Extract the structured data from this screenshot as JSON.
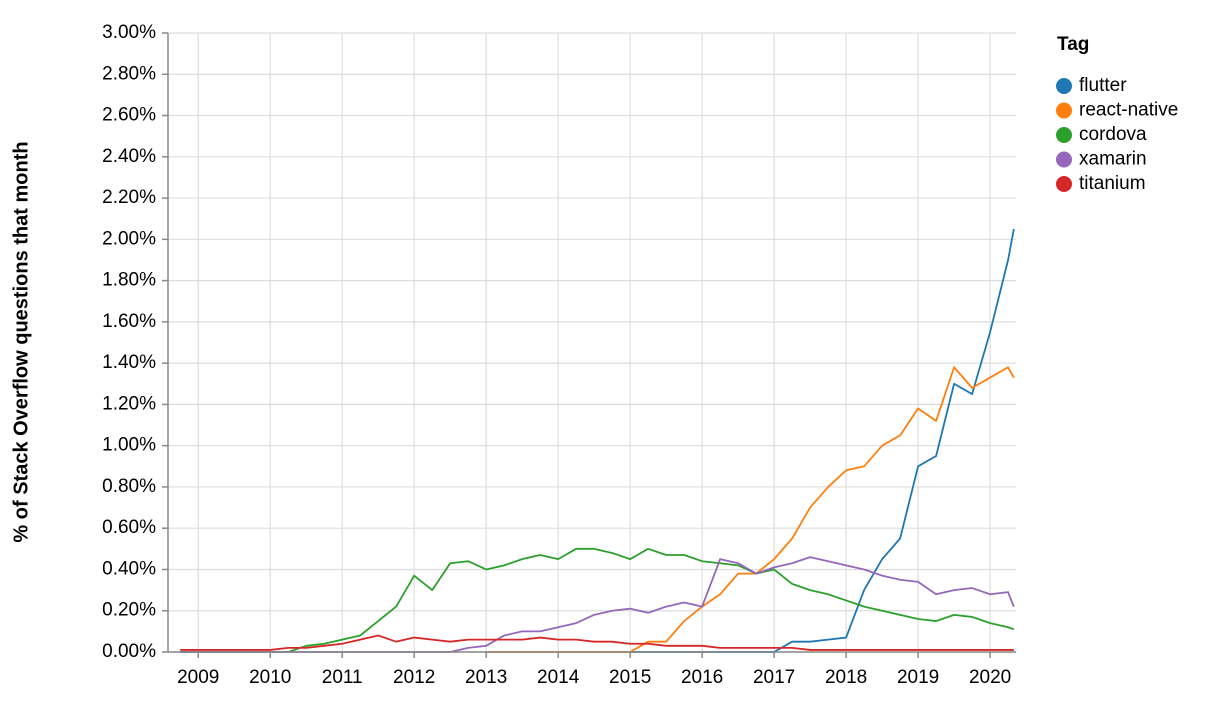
{
  "chart_data": {
    "type": "line",
    "y_label": "% of Stack Overflow questions that month",
    "legend_title": "Tag",
    "legend_position": "right",
    "grid": true,
    "xlim": [
      2008.58,
      2020.36
    ],
    "xticks": [
      2009,
      2010,
      2011,
      2012,
      2013,
      2014,
      2015,
      2016,
      2017,
      2018,
      2019,
      2020
    ],
    "ylim": [
      0,
      3
    ],
    "yticks": [
      {
        "value": 0,
        "label": "0.00%"
      },
      {
        "value": 0.2,
        "label": "0.20%"
      },
      {
        "value": 0.4,
        "label": "0.40%"
      },
      {
        "value": 0.6,
        "label": "0.60%"
      },
      {
        "value": 0.8,
        "label": "0.80%"
      },
      {
        "value": 1.0,
        "label": "1.00%"
      },
      {
        "value": 1.2,
        "label": "1.20%"
      },
      {
        "value": 1.4,
        "label": "1.40%"
      },
      {
        "value": 1.6,
        "label": "1.60%"
      },
      {
        "value": 1.8,
        "label": "1.80%"
      },
      {
        "value": 2.0,
        "label": "2.00%"
      },
      {
        "value": 2.2,
        "label": "2.20%"
      },
      {
        "value": 2.4,
        "label": "2.40%"
      },
      {
        "value": 2.6,
        "label": "2.60%"
      },
      {
        "value": 2.8,
        "label": "2.80%"
      },
      {
        "value": 3.0,
        "label": "3.00%"
      }
    ],
    "x": [
      2008.75,
      2009.0,
      2009.25,
      2009.5,
      2009.75,
      2010.0,
      2010.25,
      2010.5,
      2010.75,
      2011.0,
      2011.25,
      2011.5,
      2011.75,
      2012.0,
      2012.25,
      2012.5,
      2012.75,
      2013.0,
      2013.25,
      2013.5,
      2013.75,
      2014.0,
      2014.25,
      2014.5,
      2014.75,
      2015.0,
      2015.25,
      2015.5,
      2015.75,
      2016.0,
      2016.25,
      2016.5,
      2016.75,
      2017.0,
      2017.25,
      2017.5,
      2017.75,
      2018.0,
      2018.25,
      2018.5,
      2018.75,
      2019.0,
      2019.25,
      2019.5,
      2019.75,
      2020.0,
      2020.25,
      2020.33
    ],
    "series": [
      {
        "name": "flutter",
        "color": "#1f77b4",
        "values": [
          null,
          null,
          null,
          null,
          null,
          null,
          null,
          null,
          null,
          null,
          null,
          null,
          null,
          null,
          null,
          null,
          null,
          null,
          null,
          null,
          null,
          null,
          null,
          null,
          null,
          0,
          0,
          0,
          0,
          0,
          0,
          0,
          0,
          0,
          0.05,
          0.05,
          0.06,
          0.07,
          0.3,
          0.45,
          0.55,
          0.9,
          0.95,
          1.3,
          1.25,
          1.55,
          1.9,
          2.05
        ]
      },
      {
        "name": "react-native",
        "color": "#ff7f0e",
        "values": [
          null,
          null,
          null,
          null,
          null,
          null,
          null,
          null,
          null,
          null,
          null,
          null,
          null,
          null,
          null,
          null,
          null,
          0,
          0,
          0,
          0,
          0,
          0,
          0,
          0,
          0,
          0.05,
          0.05,
          0.15,
          0.22,
          0.28,
          0.38,
          0.38,
          0.45,
          0.55,
          0.7,
          0.8,
          0.88,
          0.9,
          1.0,
          1.05,
          1.18,
          1.12,
          1.38,
          1.28,
          1.33,
          1.38,
          1.33
        ]
      },
      {
        "name": "cordova",
        "color": "#2ca02c",
        "values": [
          0,
          0,
          0,
          0,
          0,
          0,
          0,
          0.03,
          0.04,
          0.06,
          0.08,
          0.15,
          0.22,
          0.37,
          0.3,
          0.43,
          0.44,
          0.4,
          0.42,
          0.45,
          0.47,
          0.45,
          0.5,
          0.5,
          0.48,
          0.45,
          0.5,
          0.47,
          0.47,
          0.44,
          0.43,
          0.42,
          0.38,
          0.4,
          0.33,
          0.3,
          0.28,
          0.25,
          0.22,
          0.2,
          0.18,
          0.16,
          0.15,
          0.18,
          0.17,
          0.14,
          0.12,
          0.11
        ]
      },
      {
        "name": "xamarin",
        "color": "#9467bd",
        "values": [
          0,
          0,
          0,
          0,
          0,
          0,
          0,
          0,
          0,
          0,
          0,
          0,
          0,
          0,
          0,
          0,
          0.02,
          0.03,
          0.08,
          0.1,
          0.1,
          0.12,
          0.14,
          0.18,
          0.2,
          0.21,
          0.19,
          0.22,
          0.24,
          0.22,
          0.45,
          0.43,
          0.38,
          0.41,
          0.43,
          0.46,
          0.44,
          0.42,
          0.4,
          0.37,
          0.35,
          0.34,
          0.28,
          0.3,
          0.31,
          0.28,
          0.29,
          0.22
        ]
      },
      {
        "name": "titanium",
        "color": "#d62728",
        "values": [
          0.01,
          0.01,
          0.01,
          0.01,
          0.01,
          0.01,
          0.02,
          0.02,
          0.03,
          0.04,
          0.06,
          0.08,
          0.05,
          0.07,
          0.06,
          0.05,
          0.06,
          0.06,
          0.06,
          0.06,
          0.07,
          0.06,
          0.06,
          0.05,
          0.05,
          0.04,
          0.04,
          0.03,
          0.03,
          0.03,
          0.02,
          0.02,
          0.02,
          0.02,
          0.02,
          0.01,
          0.01,
          0.01,
          0.01,
          0.01,
          0.01,
          0.01,
          0.01,
          0.01,
          0.01,
          0.01,
          0.01,
          0.01
        ]
      }
    ]
  }
}
